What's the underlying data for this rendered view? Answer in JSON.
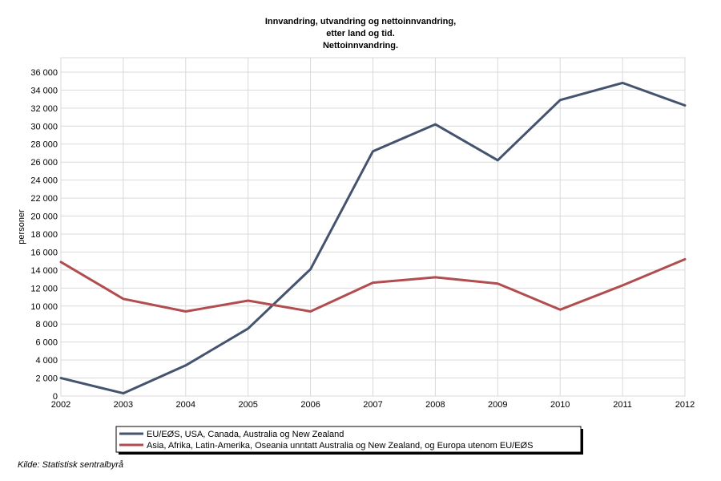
{
  "chart_data": {
    "type": "line",
    "title": [
      "Innvandring, utvandring og nettoinnvandring,",
      "etter land og tid.",
      "Nettoinnvandring."
    ],
    "xlabel": "",
    "ylabel": "personer",
    "x": [
      "2002",
      "2003",
      "2004",
      "2005",
      "2006",
      "2007",
      "2008",
      "2009",
      "2010",
      "2011",
      "2012"
    ],
    "ylim": [
      0,
      37600
    ],
    "yticks": [
      0,
      2000,
      4000,
      6000,
      8000,
      10000,
      12000,
      14000,
      16000,
      18000,
      20000,
      22000,
      24000,
      26000,
      28000,
      30000,
      32000,
      34000,
      36000
    ],
    "ytick_labels": [
      "0",
      "2 000",
      "4 000",
      "6 000",
      "8 000",
      "10 000",
      "12 000",
      "14 000",
      "16 000",
      "18 000",
      "20 000",
      "22 000",
      "24 000",
      "26 000",
      "28 000",
      "30 000",
      "32 000",
      "34 000",
      "36 000"
    ],
    "grid": true,
    "legend_position": "bottom",
    "series": [
      {
        "name": "EU/EØS, USA, Canada, Australia og New Zealand",
        "color": "#44546f",
        "values": [
          2000,
          300,
          3400,
          7500,
          14100,
          27200,
          30200,
          26200,
          32900,
          34800,
          32300
        ]
      },
      {
        "name": "Asia, Afrika, Latin-Amerika, Oseania unntatt Australia og New Zealand, og Europa utenom EU/EØS",
        "color": "#b14c4f",
        "values": [
          14900,
          10800,
          9400,
          10600,
          9400,
          12600,
          13200,
          12500,
          9600,
          12300,
          15200
        ]
      }
    ],
    "source": "Kilde: Statistisk sentralbyrå"
  }
}
